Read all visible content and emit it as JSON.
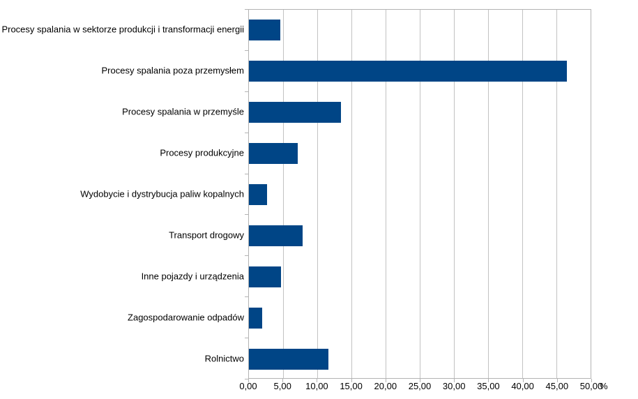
{
  "chart_data": {
    "type": "bar",
    "orientation": "horizontal",
    "title": "",
    "categories": [
      "Procesy spalania w sektorze produkcji i transformacji energii",
      "Procesy spalania poza przemysłem",
      "Procesy spalania w przemyśle",
      "Procesy produkcyjne",
      "Wydobycie i dystrybucja paliw kopalnych",
      "Transport drogowy",
      "Inne pojazdy i urządzenia",
      "Zagospodarowanie odpadów",
      "Rolnictwo"
    ],
    "values": [
      4.6,
      46.5,
      13.5,
      7.1,
      2.7,
      7.9,
      4.7,
      1.9,
      11.6
    ],
    "xlim": [
      0,
      50
    ],
    "x_ticks": [
      0,
      5,
      10,
      15,
      20,
      25,
      30,
      35,
      40,
      45,
      50
    ],
    "x_tick_labels": [
      "0,00",
      "5,00",
      "10,00",
      "15,00",
      "20,00",
      "25,00",
      "30,00",
      "35,00",
      "40,00",
      "45,00",
      "50,00"
    ],
    "unit_label": "%",
    "xlabel": "%",
    "ylabel": "",
    "grid": true,
    "legend_position": "none",
    "bar_color": "#004586",
    "gridline_color": "#c2c2c2",
    "axis_color": "#b3b3b3",
    "text_color": "#000000",
    "background_color": "#ffffff"
  }
}
